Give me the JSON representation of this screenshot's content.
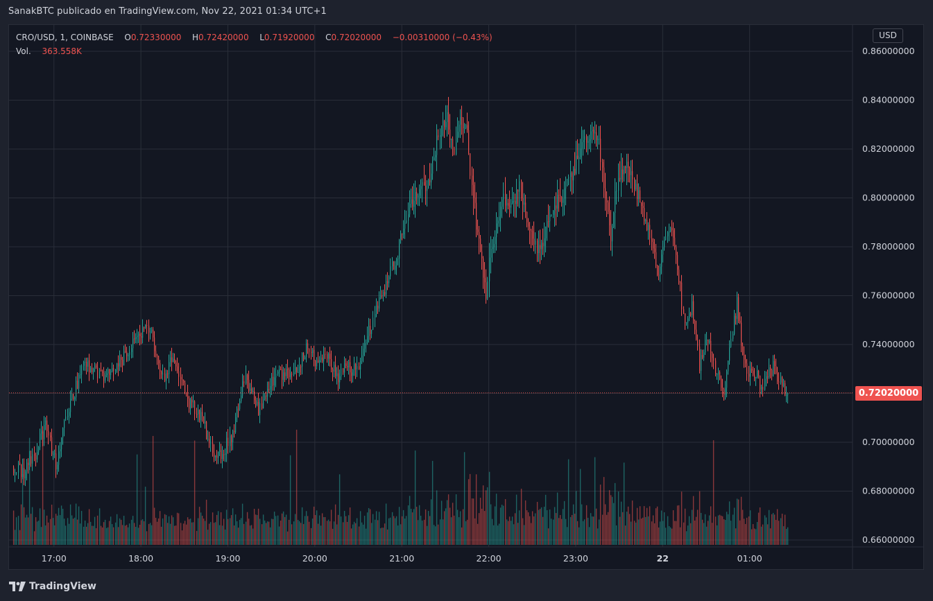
{
  "header": {
    "published_by": "SanakBTC publicado en TradingView.com, Nov 22, 2021 01:34 UTC+1"
  },
  "legend": {
    "symbol": "CRO/USD, 1, COINBASE",
    "open_label": "O",
    "open_value": "0.72330000",
    "high_label": "H",
    "high_value": "0.72420000",
    "low_label": "L",
    "low_value": "0.71920000",
    "close_label": "C",
    "close_value": "0.72020000",
    "change": "−0.00310000 (−0.43%)",
    "volume_label": "Vol.",
    "volume_value": "363.558K"
  },
  "currency_badge": "USD",
  "current_price_label": "0.72020000",
  "brand": {
    "name": "TradingView"
  },
  "colors": {
    "up": "#26a69a",
    "down": "#ef5350",
    "background": "#131722",
    "grid": "#2a2e39",
    "text": "#d1d4dc"
  },
  "chart_data": {
    "type": "candlestick",
    "symbol": "CRO/USD",
    "interval": "1",
    "exchange": "COINBASE",
    "ylim": [
      0.66,
      0.86
    ],
    "y_ticks": [
      "0.86000000",
      "0.84000000",
      "0.82000000",
      "0.80000000",
      "0.78000000",
      "0.76000000",
      "0.74000000",
      "0.72000000",
      "0.70000000",
      "0.68000000",
      "0.66000000"
    ],
    "y_tick_values": [
      0.86,
      0.84,
      0.82,
      0.8,
      0.78,
      0.76,
      0.74,
      0.72,
      0.7,
      0.68,
      0.66
    ],
    "x_ticks": [
      {
        "label": "17:00",
        "minute": 60,
        "bold": false
      },
      {
        "label": "18:00",
        "minute": 120,
        "bold": false
      },
      {
        "label": "19:00",
        "minute": 180,
        "bold": false
      },
      {
        "label": "20:00",
        "minute": 240,
        "bold": false
      },
      {
        "label": "21:00",
        "minute": 300,
        "bold": false
      },
      {
        "label": "22:00",
        "minute": 360,
        "bold": false
      },
      {
        "label": "23:00",
        "minute": 420,
        "bold": false
      },
      {
        "label": "22",
        "minute": 480,
        "bold": true
      },
      {
        "label": "01:00",
        "minute": 540,
        "bold": false
      }
    ],
    "x_range_minutes": [
      29,
      611
    ],
    "current_price": 0.7202,
    "price_path_keypoints": [
      [
        32,
        0.69
      ],
      [
        40,
        0.688
      ],
      [
        48,
        0.695
      ],
      [
        55,
        0.708
      ],
      [
        62,
        0.69
      ],
      [
        70,
        0.712
      ],
      [
        82,
        0.733
      ],
      [
        95,
        0.726
      ],
      [
        108,
        0.734
      ],
      [
        118,
        0.744
      ],
      [
        127,
        0.748
      ],
      [
        135,
        0.726
      ],
      [
        144,
        0.735
      ],
      [
        152,
        0.718
      ],
      [
        163,
        0.71
      ],
      [
        172,
        0.692
      ],
      [
        183,
        0.702
      ],
      [
        193,
        0.727
      ],
      [
        202,
        0.713
      ],
      [
        213,
        0.727
      ],
      [
        227,
        0.728
      ],
      [
        235,
        0.739
      ],
      [
        243,
        0.731
      ],
      [
        250,
        0.736
      ],
      [
        256,
        0.726
      ],
      [
        262,
        0.73
      ],
      [
        270,
        0.73
      ],
      [
        278,
        0.745
      ],
      [
        284,
        0.755
      ],
      [
        292,
        0.768
      ],
      [
        298,
        0.778
      ],
      [
        305,
        0.795
      ],
      [
        312,
        0.802
      ],
      [
        320,
        0.806
      ],
      [
        326,
        0.826
      ],
      [
        332,
        0.833
      ],
      [
        336,
        0.818
      ],
      [
        341,
        0.831
      ],
      [
        346,
        0.826
      ],
      [
        349,
        0.805
      ],
      [
        352,
        0.79
      ],
      [
        356,
        0.773
      ],
      [
        359,
        0.76
      ],
      [
        362,
        0.78
      ],
      [
        366,
        0.788
      ],
      [
        371,
        0.8
      ],
      [
        376,
        0.795
      ],
      [
        382,
        0.804
      ],
      [
        388,
        0.79
      ],
      [
        393,
        0.78
      ],
      [
        398,
        0.782
      ],
      [
        405,
        0.797
      ],
      [
        411,
        0.8
      ],
      [
        418,
        0.809
      ],
      [
        424,
        0.82
      ],
      [
        431,
        0.828
      ],
      [
        437,
        0.823
      ],
      [
        441,
        0.8
      ],
      [
        445,
        0.785
      ],
      [
        449,
        0.805
      ],
      [
        454,
        0.814
      ],
      [
        460,
        0.808
      ],
      [
        466,
        0.797
      ],
      [
        472,
        0.786
      ],
      [
        477,
        0.768
      ],
      [
        483,
        0.786
      ],
      [
        488,
        0.786
      ],
      [
        492,
        0.768
      ],
      [
        496,
        0.746
      ],
      [
        501,
        0.757
      ],
      [
        506,
        0.731
      ],
      [
        512,
        0.743
      ],
      [
        517,
        0.729
      ],
      [
        523,
        0.721
      ],
      [
        528,
        0.74
      ],
      [
        532,
        0.758
      ],
      [
        535,
        0.74
      ],
      [
        539,
        0.73
      ],
      [
        545,
        0.728
      ],
      [
        549,
        0.722
      ],
      [
        554,
        0.729
      ],
      [
        558,
        0.731
      ],
      [
        562,
        0.724
      ],
      [
        566,
        0.72
      ]
    ],
    "volume_scale": "relative",
    "volume_position": "bottom overlay",
    "grid": true
  }
}
